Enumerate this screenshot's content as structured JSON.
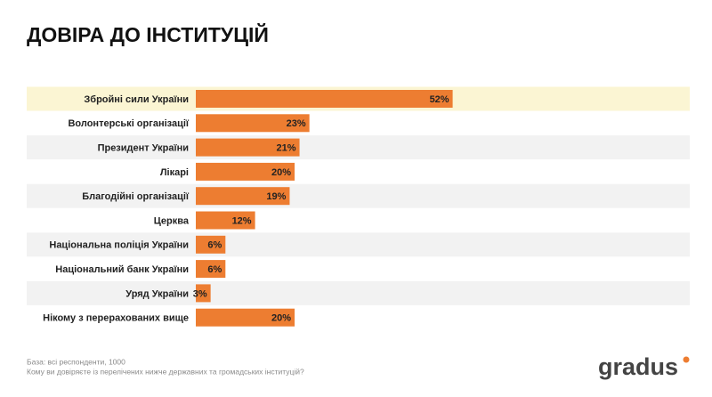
{
  "chart_data": {
    "type": "bar",
    "orientation": "horizontal",
    "title": "ДОВІРА ДО ІНСТИТУЦІЙ",
    "categories": [
      "Збройні сили України",
      "Волонтерські організації",
      "Президент України",
      "Лікарі",
      "Благодійні організації",
      "Церква",
      "Національна поліція України",
      "Національний банк України",
      "Уряд України",
      "Нікому з перерахованих вище"
    ],
    "values": [
      52,
      23,
      21,
      20,
      19,
      12,
      6,
      6,
      3,
      20
    ],
    "value_labels": [
      "52%",
      "23%",
      "21%",
      "20%",
      "19%",
      "12%",
      "6%",
      "6%",
      "3%",
      "20%"
    ],
    "color": "#ed7d31",
    "xlim": [
      0,
      100
    ],
    "notes": [
      "База: всі респонденти, 1000",
      "Кому ви довіряєте із перелічених нижче державних та громадських інституцій?"
    ],
    "logo": "gradus"
  }
}
